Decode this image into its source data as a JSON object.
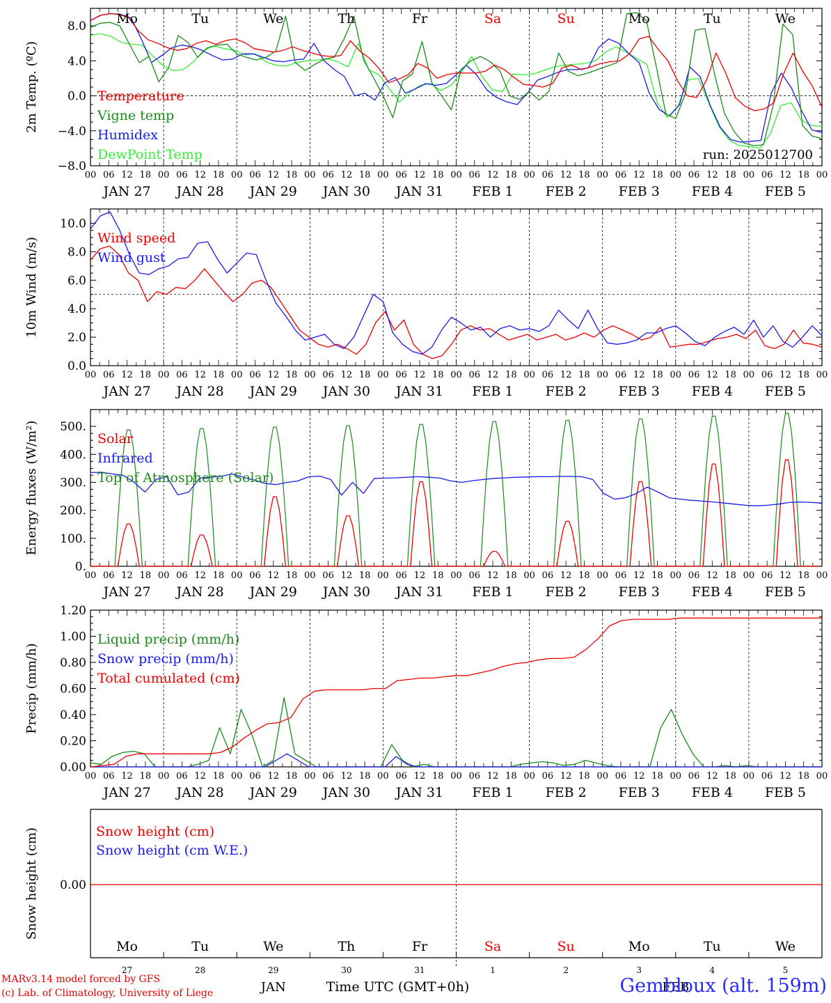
{
  "colors": {
    "red": "#ee0000",
    "green": "#1a8a1a",
    "blue": "#1a1aee",
    "lightgreen": "#33ee33",
    "black": "#000000"
  },
  "weekdays": [
    {
      "label": "Mo",
      "weekend": false
    },
    {
      "label": "Tu",
      "weekend": false
    },
    {
      "label": "We",
      "weekend": false
    },
    {
      "label": "Th",
      "weekend": false
    },
    {
      "label": "Fr",
      "weekend": false
    },
    {
      "label": "Sa",
      "weekend": true
    },
    {
      "label": "Su",
      "weekend": true
    },
    {
      "label": "Mo",
      "weekend": false
    },
    {
      "label": "Tu",
      "weekend": false
    },
    {
      "label": "We",
      "weekend": false
    }
  ],
  "date_labels": [
    "JAN 27",
    "JAN 28",
    "JAN 29",
    "JAN 30",
    "JAN 31",
    "FEB  1",
    "FEB  2",
    "FEB  3",
    "FEB  4",
    "FEB  5"
  ],
  "hour_ticks": [
    "00",
    "06",
    "12",
    "18"
  ],
  "hour_ticks_end": "00",
  "day_numbers": [
    "27",
    "28",
    "29",
    "30",
    "31",
    "1",
    "2",
    "3",
    "4",
    "5"
  ],
  "month_labels": {
    "jan": "JAN",
    "feb": "FEB"
  },
  "xaxis_title": "Time UTC (GMT+0h)",
  "run_label": "run: 2025012700",
  "credits": {
    "line1": "MARv3.14 model forced by GFS",
    "line2": "(c) Lab. of Climatology, University of Liege"
  },
  "station": "Gembloux (alt. 159m)",
  "chart_data": [
    {
      "id": "temp",
      "type": "line",
      "ylabel": "2m Temp. (ºC)",
      "x": "hour index 0..228 (3-hourly, 2025-01-27 00Z to 2025-02-06 00Z)",
      "ylim": [
        -8,
        10
      ],
      "yticks": [
        -8,
        -4,
        0,
        4,
        8
      ],
      "ytick_labels": [
        "−8.0",
        "−4.0",
        "0.0",
        "4.0",
        "8.0"
      ],
      "zero_line": true,
      "legend": [
        {
          "name": "Temperature",
          "color": "red"
        },
        {
          "name": "Vigne temp",
          "color": "green"
        },
        {
          "name": "Humidex",
          "color": "blue"
        },
        {
          "name": "DewPoint Temp",
          "color": "lightgreen"
        }
      ],
      "series": [
        {
          "name": "Temperature",
          "color": "red",
          "values": [
            8.6,
            9.2,
            9.4,
            9.3,
            8.9,
            7.4,
            6.4,
            6.0,
            5.5,
            5.2,
            5.4,
            6.0,
            6.3,
            5.9,
            6.3,
            6.5,
            6.1,
            5.4,
            5.2,
            5.0,
            5.2,
            5.6,
            5.2,
            4.9,
            4.6,
            4.5,
            4.6,
            6.3,
            5.1,
            4.3,
            3.1,
            1.5,
            1.9,
            2.4,
            3.7,
            3.2,
            2.0,
            2.4,
            2.6,
            2.6,
            2.6,
            2.8,
            3.5,
            3.0,
            2.1,
            1.3,
            1.2,
            1.0,
            1.4,
            3.2,
            3.5,
            3.0,
            3.3,
            3.7,
            3.9,
            4.0,
            4.8,
            6.5,
            6.8,
            5.3,
            4.0,
            1.7,
            0.0,
            -0.2,
            1.8,
            4.9,
            2.6,
            -0.2,
            -1.2,
            -1.7,
            -1.5,
            -0.8,
            2.5,
            4.9,
            2.8,
            1.1,
            -1.3
          ]
        },
        {
          "name": "Vigne temp",
          "color": "green",
          "values": [
            7.8,
            8.3,
            8.4,
            8.0,
            5.9,
            3.8,
            4.5,
            1.6,
            3.2,
            6.9,
            6.1,
            4.4,
            5.5,
            5.8,
            5.9,
            4.8,
            4.4,
            4.1,
            4.4,
            5.1,
            9.1,
            3.8,
            2.9,
            3.6,
            4.2,
            4.4,
            6.5,
            9.1,
            4.1,
            2.1,
            0.0,
            -2.5,
            1.7,
            2.5,
            6.2,
            1.5,
            0.0,
            -1.6,
            3.0,
            4.0,
            4.5,
            3.9,
            2.8,
            0.0,
            -0.4,
            0.5,
            -0.5,
            0.5,
            4.9,
            2.8,
            2.3,
            2.6,
            3.0,
            3.4,
            3.8,
            9.4,
            9.5,
            8.6,
            3.4,
            -2.1,
            -2.6,
            0.2,
            7.5,
            7.7,
            2.4,
            -2.0,
            -4.1,
            -5.4,
            -5.7,
            -5.6,
            -1.1,
            8.2,
            7.0,
            -3.4,
            -4.6,
            -4.9
          ]
        },
        {
          "name": "Humidex",
          "color": "blue",
          "values": [
            8.6,
            9.2,
            9.4,
            9.3,
            8.9,
            6.5,
            3.8,
            4.6,
            5.5,
            5.8,
            5.6,
            5.2,
            4.6,
            4.1,
            4.2,
            4.8,
            4.8,
            4.4,
            4.0,
            3.9,
            4.1,
            4.2,
            6.0,
            4.0,
            3.0,
            2.2,
            0.0,
            0.3,
            -0.5,
            1.5,
            2.1,
            0.3,
            0.8,
            1.4,
            1.2,
            1.4,
            2.4,
            3.5,
            2.4,
            0.7,
            -0.2,
            -0.7,
            -1.0,
            0.3,
            1.8,
            2.2,
            2.7,
            3.0,
            3.0,
            3.2,
            5.5,
            6.5,
            6.0,
            4.8,
            3.8,
            0.3,
            -1.6,
            -2.3,
            -1.0,
            3.3,
            2.2,
            -1.1,
            -3.6,
            -5.0,
            -5.3,
            -5.2,
            -5.1,
            0.3,
            2.6,
            0.9,
            -1.7,
            -3.9,
            -4.2
          ]
        },
        {
          "name": "DewPoint Temp",
          "color": "lightgreen",
          "values": [
            6.9,
            7.1,
            6.8,
            6.1,
            5.9,
            5.8,
            4.6,
            3.5,
            2.9,
            3.0,
            3.9,
            5.2,
            5.7,
            5.4,
            5.2,
            4.7,
            4.8,
            3.9,
            3.5,
            3.4,
            3.8,
            4.0,
            4.1,
            4.2,
            3.9,
            3.3,
            6.0,
            3.0,
            2.4,
            0.8,
            -0.7,
            0.4,
            1.2,
            1.4,
            0.6,
            1.2,
            2.7,
            4.5,
            2.2,
            0.7,
            0.5,
            2.5,
            2.4,
            2.5,
            2.9,
            3.3,
            3.5,
            3.6,
            3.7,
            4.0,
            5.0,
            5.6,
            5.0,
            4.3,
            3.6,
            -0.8,
            -2.5,
            -1.2,
            1.8,
            2.0,
            -0.8,
            -3.5,
            -5.1,
            -5.7,
            -5.8,
            -6.0,
            -4.3,
            -1.1,
            -0.8,
            -2.8,
            -3.4,
            -3.5
          ]
        }
      ]
    },
    {
      "id": "wind",
      "type": "line",
      "ylabel": "10m Wind (m/s)",
      "ylim": [
        0,
        11
      ],
      "yticks": [
        0,
        2,
        4,
        6,
        8,
        10
      ],
      "ytick_labels": [
        "0.0",
        "2.0",
        "4.0",
        "6.0",
        "8.0",
        "10.0"
      ],
      "ref_line": 5,
      "legend": [
        {
          "name": "Wind speed",
          "color": "red"
        },
        {
          "name": "Wind gust",
          "color": "blue"
        }
      ],
      "series": [
        {
          "name": "Wind speed",
          "color": "red",
          "values": [
            7.4,
            8.2,
            8.4,
            7.8,
            6.5,
            6.0,
            4.5,
            5.2,
            5.0,
            5.5,
            5.4,
            6.0,
            6.8,
            6.0,
            5.2,
            4.5,
            5.0,
            5.8,
            6.0,
            5.5,
            4.5,
            3.5,
            2.5,
            2.0,
            1.5,
            1.3,
            1.5,
            1.2,
            0.8,
            1.5,
            3.0,
            3.8,
            2.5,
            3.2,
            1.5,
            0.8,
            0.5,
            0.7,
            1.5,
            2.5,
            2.8,
            2.5,
            2.6,
            2.2,
            1.8,
            2.0,
            2.2,
            1.8,
            2.0,
            2.2,
            1.8,
            2.0,
            2.3,
            2.0,
            2.5,
            2.8,
            2.5,
            2.2,
            1.8,
            2.0,
            2.7,
            1.3,
            1.4,
            1.5,
            1.5,
            1.7,
            1.9,
            2.0,
            2.2,
            1.9,
            2.5,
            1.4,
            1.2,
            1.5,
            2.5,
            1.6,
            1.5,
            1.3
          ]
        },
        {
          "name": "Wind gust",
          "color": "blue",
          "values": [
            9.6,
            10.5,
            10.8,
            9.5,
            7.8,
            6.5,
            6.4,
            6.8,
            7.0,
            7.5,
            7.6,
            8.6,
            8.7,
            7.5,
            6.5,
            7.2,
            7.9,
            7.8,
            6.0,
            4.4,
            3.5,
            2.5,
            1.8,
            2.0,
            2.2,
            1.5,
            1.2,
            2.0,
            3.5,
            5.0,
            4.5,
            2.3,
            1.5,
            1.0,
            0.8,
            1.3,
            2.5,
            3.4,
            3.0,
            2.5,
            2.7,
            2.0,
            2.6,
            2.8,
            2.5,
            2.6,
            2.4,
            2.8,
            3.9,
            3.2,
            2.6,
            3.9,
            2.6,
            1.6,
            1.5,
            1.6,
            1.8,
            2.3,
            2.3,
            2.6,
            2.8,
            2.3,
            1.7,
            1.4,
            2.0,
            2.4,
            2.7,
            2.2,
            3.2,
            2.0,
            2.8,
            1.7,
            1.3,
            2.0,
            2.8,
            2.1
          ]
        }
      ]
    },
    {
      "id": "energy",
      "type": "line",
      "ylabel": "Energy fluxes (W/m²)",
      "ylim": [
        0,
        560
      ],
      "yticks": [
        0,
        100,
        200,
        300,
        400,
        500
      ],
      "ytick_labels": [
        "0.",
        "100.",
        "200.",
        "300.",
        "400.",
        "500."
      ],
      "legend": [
        {
          "name": "Solar",
          "color": "red"
        },
        {
          "name": "Infrared",
          "color": "blue"
        },
        {
          "name": "Top of Atmosphere (Solar)",
          "color": "green"
        }
      ],
      "toa_peaks": [
        495,
        500,
        505,
        510,
        515,
        525,
        530,
        535,
        545,
        555
      ],
      "solar_peaks": [
        155,
        115,
        255,
        185,
        310,
        55,
        165,
        310,
        375,
        390
      ],
      "series": [
        {
          "name": "Infrared",
          "color": "blue",
          "values": [
            335,
            336,
            330,
            325,
            300,
            265,
            310,
            320,
            255,
            265,
            315,
            318,
            322,
            330,
            318,
            308,
            296,
            292,
            300,
            305,
            320,
            322,
            310,
            254,
            300,
            260,
            314,
            315,
            316,
            318,
            320,
            318,
            315,
            305,
            300,
            306,
            310,
            314,
            316,
            318,
            319,
            320,
            320,
            321,
            321,
            320,
            310,
            260,
            240,
            245,
            260,
            283,
            265,
            245,
            240,
            236,
            233,
            230,
            226,
            222,
            218,
            216,
            218,
            222,
            228,
            230,
            228,
            226
          ]
        }
      ]
    },
    {
      "id": "precip",
      "type": "line",
      "ylabel": "Precip (mm/h)",
      "ylim": [
        0,
        1.2
      ],
      "yticks": [
        0,
        0.2,
        0.4,
        0.6,
        0.8,
        1.0,
        1.2
      ],
      "ytick_labels": [
        "0.00",
        "0.20",
        "0.40",
        "0.60",
        "0.80",
        "1.00",
        "1.20"
      ],
      "legend": [
        {
          "name": "Liquid precip (mm/h)",
          "color": "green"
        },
        {
          "name": "Snow precip (mm/h)",
          "color": "blue"
        },
        {
          "name": "Total cumulated (cm)",
          "color": "red"
        }
      ],
      "series": [
        {
          "name": "Liquid precip (mm/h)",
          "color": "green",
          "values": [
            0.03,
            0.02,
            0.08,
            0.11,
            0.12,
            0.1,
            0,
            0,
            0,
            0,
            0.02,
            0.05,
            0.3,
            0.1,
            0.44,
            0.25,
            0,
            0.05,
            0.53,
            0.1,
            0.05,
            0,
            0,
            0,
            0,
            0,
            0,
            0,
            0.17,
            0.05,
            0,
            0.02,
            0,
            0,
            0,
            0,
            0,
            0,
            0,
            0,
            0.02,
            0.03,
            0.04,
            0.03,
            0.01,
            0.02,
            0.05,
            0.03,
            0.01,
            0,
            0,
            0,
            0,
            0.3,
            0.44,
            0.25,
            0.1,
            0,
            0,
            0.01,
            0,
            0.01,
            0,
            0,
            0,
            0,
            0,
            0,
            0
          ]
        },
        {
          "name": "Snow precip (mm/h)",
          "color": "blue",
          "values": [
            0,
            0,
            0,
            0,
            0,
            0,
            0,
            0,
            0,
            0,
            0,
            0,
            0,
            0,
            0,
            0,
            0,
            0.05,
            0.1,
            0.05,
            0,
            0,
            0,
            0,
            0,
            0,
            0,
            0,
            0.08,
            0.02,
            0,
            0,
            0,
            0,
            0,
            0,
            0,
            0,
            0,
            0,
            0,
            0,
            0,
            0,
            0,
            0,
            0,
            0,
            0,
            0,
            0,
            0,
            0,
            0,
            0,
            0,
            0,
            0,
            0,
            0,
            0,
            0,
            0,
            0,
            0,
            0,
            0,
            0
          ]
        },
        {
          "name": "Total cumulated (cm)",
          "color": "red",
          "values": [
            0,
            0.01,
            0.02,
            0.08,
            0.1,
            0.1,
            0.1,
            0.1,
            0.1,
            0.1,
            0.1,
            0.11,
            0.15,
            0.22,
            0.28,
            0.33,
            0.34,
            0.38,
            0.52,
            0.58,
            0.59,
            0.59,
            0.59,
            0.59,
            0.6,
            0.6,
            0.66,
            0.67,
            0.68,
            0.68,
            0.69,
            0.7,
            0.7,
            0.72,
            0.74,
            0.77,
            0.79,
            0.8,
            0.82,
            0.83,
            0.83,
            0.84,
            0.9,
            0.98,
            1.08,
            1.12,
            1.13,
            1.13,
            1.13,
            1.13,
            1.14,
            1.14,
            1.14,
            1.14,
            1.14,
            1.14,
            1.14,
            1.14,
            1.14,
            1.14,
            1.14,
            1.14,
            1.14
          ]
        }
      ]
    },
    {
      "id": "snow",
      "type": "line",
      "ylabel": "Snow height (cm)",
      "yticks": [
        0
      ],
      "ytick_labels": [
        "0.00"
      ],
      "legend": [
        {
          "name": "Snow height (cm)",
          "color": "red"
        },
        {
          "name": "Snow height (cm W.E.)",
          "color": "blue"
        }
      ],
      "series": [
        {
          "name": "Snow height (cm)",
          "color": "red",
          "values": [
            0,
            0
          ]
        }
      ]
    }
  ]
}
